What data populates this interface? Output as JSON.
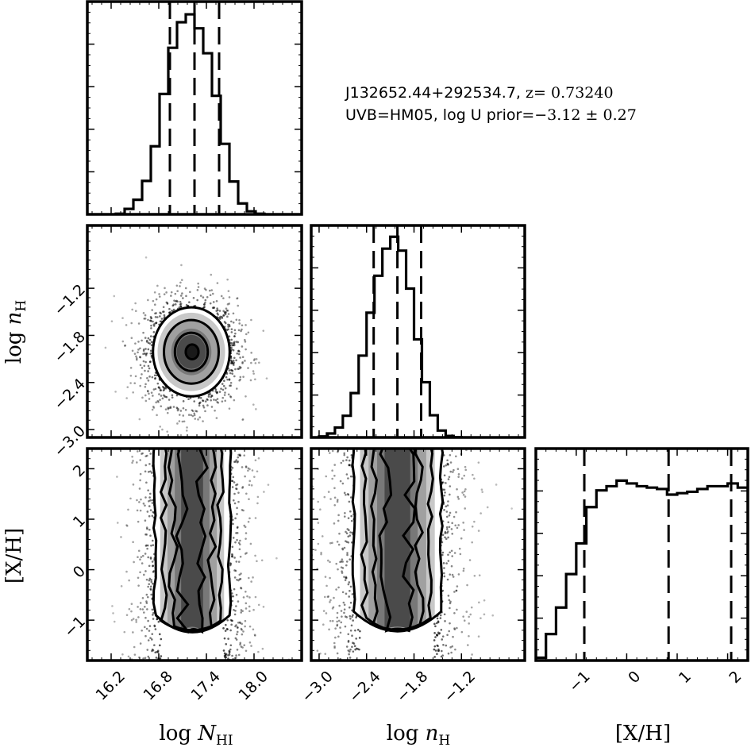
{
  "annotation": {
    "object": "J132652.44+292534.7,",
    "z_label": "z",
    "z_value": "= 0.73240",
    "uvb": "UVB=HM05, log U prior=",
    "prior": "−3.12 ± 0.27"
  },
  "colors": {
    "ink": "#000000",
    "background": "#ffffff",
    "fill_levels": [
      "#ffffff",
      "#e6e6e6",
      "#c8c8c8",
      "#a0a0a0",
      "#787878",
      "#4a4a4a",
      "#1a1a1a"
    ]
  },
  "chart_data": {
    "type": "corner",
    "parameters": [
      {
        "key": "logN",
        "label": "log",
        "label_sym": "N",
        "label_sub": "HI",
        "range": [
          15.9,
          18.6
        ],
        "ticks": [
          16.2,
          16.8,
          17.4,
          18.0
        ],
        "tick_labels": [
          "16.2",
          "16.8",
          "17.4",
          "18.0"
        ]
      },
      {
        "key": "lognH",
        "label": "log",
        "label_sym": "n",
        "label_sub": "H",
        "range": [
          -3.1,
          -0.4
        ],
        "ticks": [
          -3.0,
          -2.4,
          -1.8,
          -1.2
        ],
        "tick_labels": [
          "−3.0",
          "−2.4",
          "−1.8",
          "−1.2"
        ]
      },
      {
        "key": "XH",
        "label": "[X/H]",
        "range": [
          -1.8,
          2.4
        ],
        "ticks": [
          -1,
          0,
          1,
          2
        ],
        "tick_labels": [
          "−1",
          "0",
          "1",
          "2"
        ]
      }
    ],
    "histograms": [
      {
        "param": "logN",
        "bins": [
          16.26,
          16.37,
          16.48,
          16.59,
          16.7,
          16.81,
          16.92,
          17.03,
          17.14,
          17.25,
          17.36,
          17.47,
          17.58,
          17.69,
          17.8,
          17.91,
          18.02
        ],
        "counts": [
          0.1,
          0.9,
          2.4,
          5.5,
          11.2,
          19.8,
          27.4,
          31.6,
          32.9,
          30.6,
          26.5,
          19.5,
          11.6,
          5.4,
          1.8,
          0.5,
          0.1
        ],
        "ymax": 35,
        "quantiles": [
          16.94,
          17.25,
          17.56
        ]
      },
      {
        "param": "lognH",
        "bins": [
          -3.0,
          -2.9,
          -2.8,
          -2.7,
          -2.6,
          -2.5,
          -2.4,
          -2.3,
          -2.2,
          -2.1,
          -2.0,
          -1.9,
          -1.8,
          -1.7,
          -1.6,
          -1.5,
          -1.4,
          -1.3
        ],
        "counts": [
          0.2,
          0.8,
          2.0,
          4.4,
          9.0,
          16.6,
          25.3,
          32.8,
          38.3,
          40.7,
          37.9,
          30.2,
          19.9,
          11.2,
          4.5,
          1.4,
          0.3,
          0.05
        ],
        "ymax": 43,
        "quantiles": [
          -2.31,
          -2.01,
          -1.71
        ]
      },
      {
        "param": "XH",
        "bins": [
          -1.8,
          -1.6,
          -1.4,
          -1.2,
          -1.0,
          -0.8,
          -0.6,
          -0.4,
          -0.2,
          0.0,
          0.2,
          0.4,
          0.6,
          0.8,
          1.0,
          1.2,
          1.4,
          1.6,
          1.8,
          2.0,
          2.2
        ],
        "counts": [
          1.0,
          9.5,
          19.0,
          31.0,
          42.0,
          55.0,
          61.0,
          62.5,
          64.5,
          63.5,
          62.5,
          62.0,
          61.5,
          59.5,
          60.0,
          60.5,
          61.5,
          62.5,
          62.5,
          63.5,
          62.0
        ],
        "ymax": 76,
        "quantiles": [
          -0.84,
          0.83,
          2.07
        ]
      }
    ],
    "joint": [
      {
        "x": "logN",
        "y": "lognH",
        "center": [
          17.21,
          -2.01
        ],
        "sigma": [
          0.23,
          0.27
        ],
        "contour_levels": [
          0.35,
          0.9,
          1.5,
          2.1
        ]
      },
      {
        "x": "logN",
        "y": "XH",
        "shape": "band",
        "x_center": 17.22,
        "x_sigma": 0.23,
        "y_range": [
          -1.8,
          2.4
        ]
      },
      {
        "x": "lognH",
        "y": "XH",
        "shape": "band",
        "x_center": -2.01,
        "x_sigma": 0.27,
        "y_range": [
          -1.8,
          2.4
        ]
      }
    ]
  }
}
